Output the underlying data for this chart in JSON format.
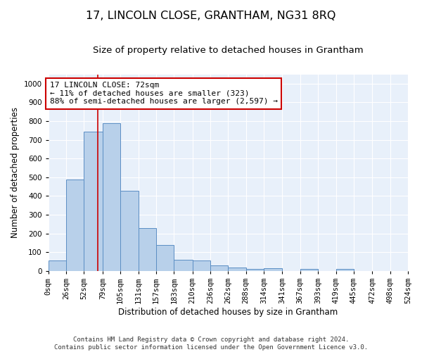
{
  "title": "17, LINCOLN CLOSE, GRANTHAM, NG31 8RQ",
  "subtitle": "Size of property relative to detached houses in Grantham",
  "xlabel": "Distribution of detached houses by size in Grantham",
  "ylabel": "Number of detached properties",
  "bin_labels": [
    "0sqm",
    "26sqm",
    "52sqm",
    "79sqm",
    "105sqm",
    "131sqm",
    "157sqm",
    "183sqm",
    "210sqm",
    "236sqm",
    "262sqm",
    "288sqm",
    "314sqm",
    "341sqm",
    "367sqm",
    "393sqm",
    "419sqm",
    "445sqm",
    "472sqm",
    "498sqm",
    "524sqm"
  ],
  "bar_values": [
    55,
    490,
    745,
    790,
    430,
    230,
    140,
    60,
    55,
    30,
    20,
    10,
    15,
    0,
    10,
    0,
    10,
    0,
    0,
    0
  ],
  "bin_edges": [
    0,
    26,
    52,
    79,
    105,
    131,
    157,
    183,
    210,
    236,
    262,
    288,
    314,
    341,
    367,
    393,
    419,
    445,
    472,
    498,
    524
  ],
  "bar_color": "#b8d0ea",
  "bar_edge_color": "#5b8ec4",
  "property_value": 72,
  "vline_color": "#cc0000",
  "annotation_text": "17 LINCOLN CLOSE: 72sqm\n← 11% of detached houses are smaller (323)\n88% of semi-detached houses are larger (2,597) →",
  "annotation_box_color": "#ffffff",
  "annotation_box_edge_color": "#cc0000",
  "ylim": [
    0,
    1050
  ],
  "background_color": "#e8f0fa",
  "footer_text": "Contains HM Land Registry data © Crown copyright and database right 2024.\nContains public sector information licensed under the Open Government Licence v3.0.",
  "title_fontsize": 11.5,
  "subtitle_fontsize": 9.5,
  "axis_label_fontsize": 8.5,
  "tick_fontsize": 7.5,
  "annotation_fontsize": 8,
  "footer_fontsize": 6.5
}
